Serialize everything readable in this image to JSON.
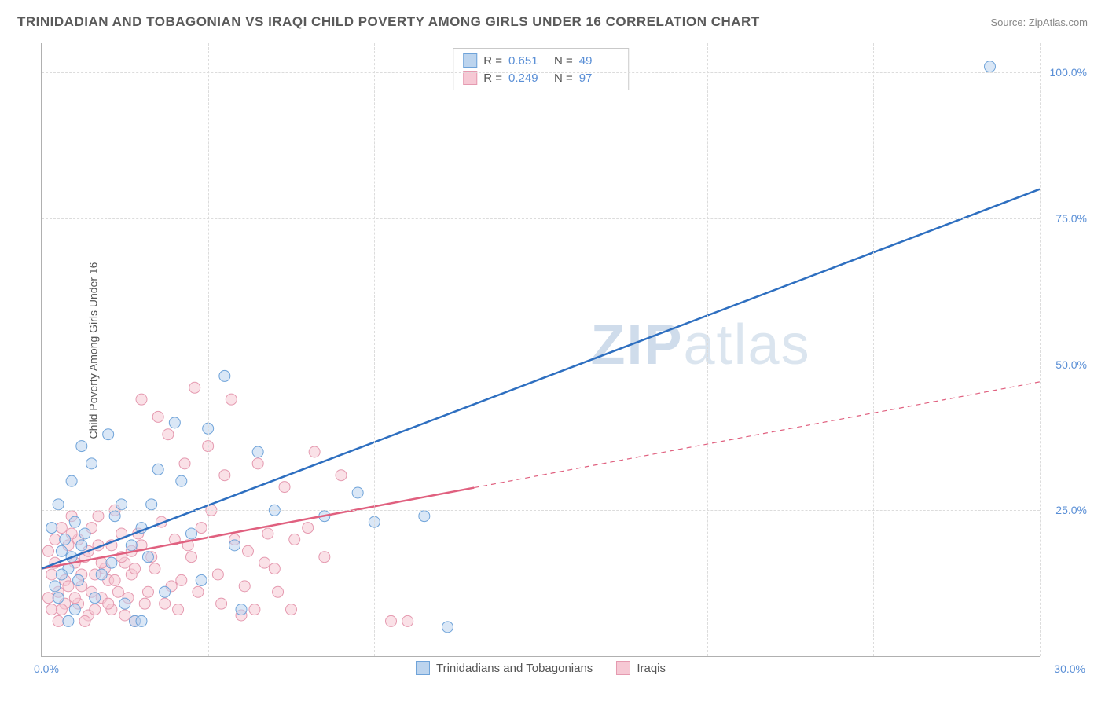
{
  "header": {
    "title": "TRINIDADIAN AND TOBAGONIAN VS IRAQI CHILD POVERTY AMONG GIRLS UNDER 16 CORRELATION CHART",
    "source": "Source: ZipAtlas.com"
  },
  "axes": {
    "y_label": "Child Poverty Among Girls Under 16",
    "x_min": 0,
    "x_max": 30,
    "y_min": 0,
    "y_max": 105,
    "x_tick_left": "0.0%",
    "x_tick_right": "30.0%",
    "y_ticks": [
      {
        "v": 25,
        "label": "25.0%"
      },
      {
        "v": 50,
        "label": "50.0%"
      },
      {
        "v": 75,
        "label": "75.0%"
      },
      {
        "v": 100,
        "label": "100.0%"
      }
    ],
    "x_grid": [
      5,
      10,
      15,
      20,
      25,
      30
    ],
    "grid_color": "#dcdcdc"
  },
  "series": {
    "a": {
      "name": "Trinidadians and Tobagonians",
      "color_fill": "#bcd4ee",
      "color_stroke": "#6fa3d9",
      "line_color": "#2e6fc0",
      "r_label": "R =",
      "r_value": "0.651",
      "n_label": "N =",
      "n_value": "49",
      "trend": {
        "x1": 0,
        "y1": 15,
        "x2": 30,
        "y2": 80,
        "solid_until_x": 30
      },
      "points": [
        [
          0.3,
          22
        ],
        [
          0.6,
          18
        ],
        [
          0.5,
          26
        ],
        [
          0.8,
          15
        ],
        [
          1.0,
          23
        ],
        [
          1.2,
          19
        ],
        [
          0.4,
          12
        ],
        [
          1.5,
          33
        ],
        [
          2.0,
          38
        ],
        [
          1.2,
          36
        ],
        [
          0.9,
          30
        ],
        [
          2.5,
          9
        ],
        [
          1.8,
          14
        ],
        [
          3.0,
          22
        ],
        [
          3.5,
          32
        ],
        [
          4.0,
          40
        ],
        [
          3.2,
          17
        ],
        [
          5.0,
          39
        ],
        [
          4.5,
          21
        ],
        [
          5.5,
          48
        ],
        [
          2.8,
          6
        ],
        [
          1.0,
          8
        ],
        [
          0.7,
          20
        ],
        [
          6.5,
          35
        ],
        [
          7.0,
          25
        ],
        [
          5.8,
          19
        ],
        [
          4.2,
          30
        ],
        [
          3.0,
          6
        ],
        [
          2.2,
          24
        ],
        [
          8.5,
          24
        ],
        [
          9.5,
          28
        ],
        [
          10.0,
          23
        ],
        [
          11.5,
          24
        ],
        [
          12.2,
          5
        ],
        [
          28.5,
          101
        ],
        [
          1.1,
          13
        ],
        [
          0.5,
          10
        ],
        [
          2.4,
          26
        ],
        [
          3.7,
          11
        ],
        [
          0.9,
          17
        ],
        [
          1.3,
          21
        ],
        [
          2.1,
          16
        ],
        [
          0.6,
          14
        ],
        [
          4.8,
          13
        ],
        [
          6.0,
          8
        ],
        [
          2.7,
          19
        ],
        [
          3.3,
          26
        ],
        [
          1.6,
          10
        ],
        [
          0.8,
          6
        ]
      ]
    },
    "b": {
      "name": "Iraqis",
      "color_fill": "#f6c8d4",
      "color_stroke": "#e59ab0",
      "line_color": "#e0607f",
      "r_label": "R =",
      "r_value": "0.249",
      "n_label": "N =",
      "n_value": "97",
      "trend": {
        "x1": 0,
        "y1": 15,
        "x2": 30,
        "y2": 47,
        "solid_until_x": 13
      },
      "points": [
        [
          0.2,
          18
        ],
        [
          0.4,
          20
        ],
        [
          0.3,
          14
        ],
        [
          0.6,
          22
        ],
        [
          0.5,
          11
        ],
        [
          0.8,
          19
        ],
        [
          0.7,
          9
        ],
        [
          1.0,
          16
        ],
        [
          0.9,
          24
        ],
        [
          1.2,
          12
        ],
        [
          1.1,
          20
        ],
        [
          1.4,
          7
        ],
        [
          1.3,
          17
        ],
        [
          1.6,
          14
        ],
        [
          1.5,
          22
        ],
        [
          1.8,
          10
        ],
        [
          1.7,
          19
        ],
        [
          2.0,
          13
        ],
        [
          2.2,
          25
        ],
        [
          2.1,
          8
        ],
        [
          2.5,
          16
        ],
        [
          2.4,
          21
        ],
        [
          2.8,
          6
        ],
        [
          2.7,
          18
        ],
        [
          3.0,
          44
        ],
        [
          3.2,
          11
        ],
        [
          3.5,
          41
        ],
        [
          3.4,
          15
        ],
        [
          3.8,
          38
        ],
        [
          3.7,
          9
        ],
        [
          4.0,
          20
        ],
        [
          4.3,
          33
        ],
        [
          4.2,
          13
        ],
        [
          4.6,
          46
        ],
        [
          4.5,
          17
        ],
        [
          5.0,
          36
        ],
        [
          4.8,
          22
        ],
        [
          5.3,
          14
        ],
        [
          5.5,
          31
        ],
        [
          5.7,
          44
        ],
        [
          6.0,
          7
        ],
        [
          6.2,
          18
        ],
        [
          6.5,
          33
        ],
        [
          6.8,
          21
        ],
        [
          7.0,
          15
        ],
        [
          7.3,
          29
        ],
        [
          7.5,
          8
        ],
        [
          8.0,
          22
        ],
        [
          8.5,
          17
        ],
        [
          9.0,
          31
        ],
        [
          10.5,
          6
        ],
        [
          11.0,
          6
        ],
        [
          0.3,
          8
        ],
        [
          0.5,
          6
        ],
        [
          0.7,
          13
        ],
        [
          0.9,
          21
        ],
        [
          1.1,
          9
        ],
        [
          1.3,
          6
        ],
        [
          1.5,
          11
        ],
        [
          1.7,
          24
        ],
        [
          1.9,
          15
        ],
        [
          2.1,
          19
        ],
        [
          2.3,
          11
        ],
        [
          2.5,
          7
        ],
        [
          2.7,
          14
        ],
        [
          2.9,
          21
        ],
        [
          3.1,
          9
        ],
        [
          3.3,
          17
        ],
        [
          3.6,
          23
        ],
        [
          3.9,
          12
        ],
        [
          4.1,
          8
        ],
        [
          4.4,
          19
        ],
        [
          4.7,
          11
        ],
        [
          5.1,
          25
        ],
        [
          5.4,
          9
        ],
        [
          5.8,
          20
        ],
        [
          6.1,
          12
        ],
        [
          6.4,
          8
        ],
        [
          6.7,
          16
        ],
        [
          7.1,
          11
        ],
        [
          7.6,
          20
        ],
        [
          8.2,
          35
        ],
        [
          0.2,
          10
        ],
        [
          0.4,
          16
        ],
        [
          0.6,
          8
        ],
        [
          0.8,
          12
        ],
        [
          1.0,
          10
        ],
        [
          1.2,
          14
        ],
        [
          1.4,
          18
        ],
        [
          1.6,
          8
        ],
        [
          1.8,
          16
        ],
        [
          2.0,
          9
        ],
        [
          2.2,
          13
        ],
        [
          2.4,
          17
        ],
        [
          2.6,
          10
        ],
        [
          2.8,
          15
        ],
        [
          3.0,
          19
        ]
      ]
    }
  },
  "watermark": {
    "prefix": "ZIP",
    "suffix": "atlas"
  },
  "styling": {
    "marker_radius": 7,
    "marker_opacity": 0.55,
    "line_width": 2.5,
    "background": "#ffffff",
    "title_fontsize": 17,
    "tick_fontsize": 14,
    "tick_color": "#5a8fd6"
  }
}
